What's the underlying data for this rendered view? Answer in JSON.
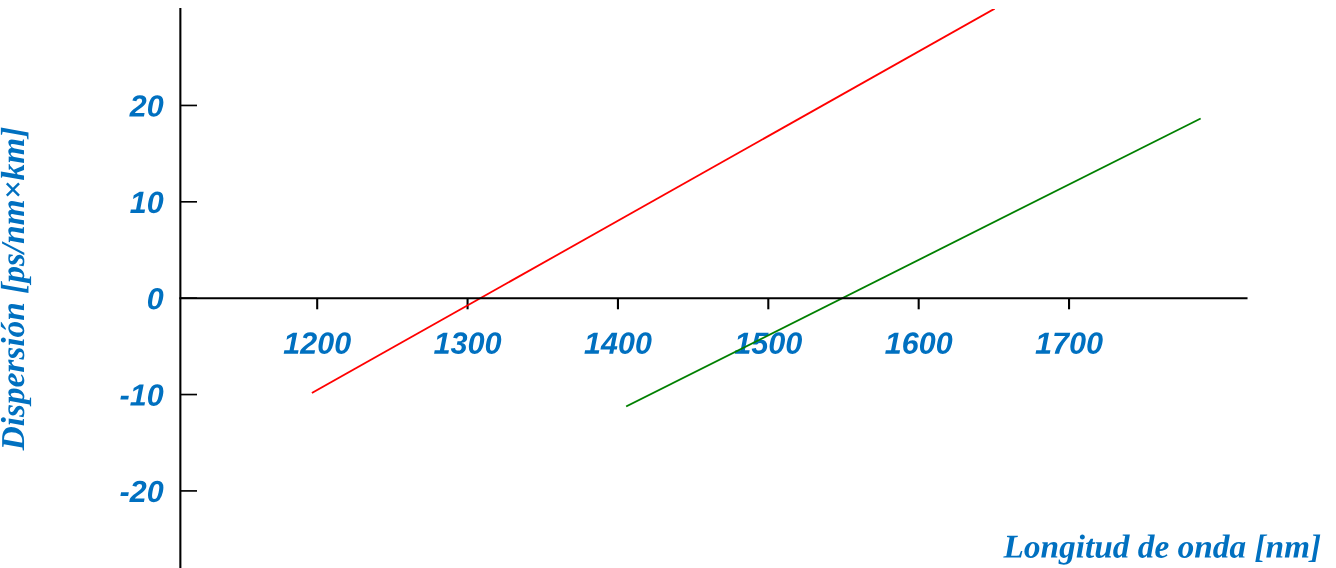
{
  "chart_data": {
    "type": "line",
    "xlabel": "Longitud de onda [nm]",
    "ylabel": "Dispersión [ps/nm×km]",
    "series": [
      {
        "color": "#ff0000",
        "x": [
          1197,
          1650
        ],
        "values": [
          -9.8,
          30
        ]
      },
      {
        "color": "#008000",
        "x": [
          1406,
          1787
        ],
        "values": [
          -11.2,
          18.6
        ]
      }
    ],
    "xlim": [
      1109,
      1818
    ],
    "xticks": [
      1200,
      1300,
      1400,
      1500,
      1600,
      1700
    ],
    "ylim": [
      -28,
      30
    ],
    "yticks": [
      -20,
      -10,
      0,
      10,
      20
    ],
    "grid": false,
    "legend": false,
    "marker": "none",
    "line_style": "solid"
  }
}
